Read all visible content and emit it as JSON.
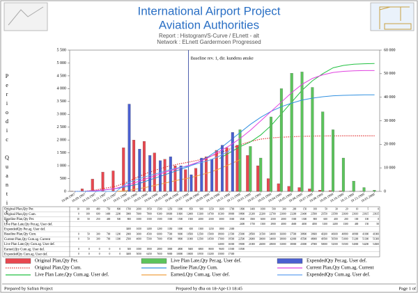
{
  "header": {
    "title": "International Airport Project",
    "subtitle": "Aviation Authorities",
    "report": "Report : Histogram/S-Curve / ELnett - alt",
    "network": "Network : ELnett Gardermoen Progressed"
  },
  "chart_data": {
    "type": "combo",
    "y_label": "Periodic Quantity",
    "annotation": "Baseline rev. 1, dir. kundens ønske",
    "categories": [
      "10.08.1997",
      "10.09.1997",
      "10.10.1997",
      "10.11.1997",
      "10.12.1997",
      "10.01.1998",
      "10.02.1998",
      "10.03.1998",
      "10.04.1998",
      "10.05.1998",
      "10.06.1998",
      "10.07.1998",
      "10.08.1998",
      "10.09.1998",
      "10.10.1998",
      "10.11.1998",
      "10.12.1998",
      "10.01.1999",
      "10.02.1999",
      "10.03.1999",
      "10.04.1999",
      "10.05.1999",
      "10.06.1999",
      "10.07.1999",
      "10.08.1999",
      "10.09.1999",
      "10.10.1999",
      "10.11.1999",
      "10.12.1999",
      "10.01.2000"
    ],
    "ylim": [
      0,
      5500
    ],
    "yticks": [
      0,
      500,
      {
        "value": 1000,
        "label": "1 000"
      },
      {
        "value": 1500,
        "label": "1 500"
      },
      {
        "value": 2000,
        "label": "2 000"
      },
      {
        "value": 2500,
        "label": "2 500"
      },
      {
        "value": 3000,
        "label": "3 000"
      },
      {
        "value": 3500,
        "label": "3 500"
      },
      {
        "value": 4000,
        "label": "4 000"
      },
      {
        "value": 4500,
        "label": "4 500"
      },
      {
        "value": 5000,
        "label": "5 000"
      },
      {
        "value": 5500,
        "label": "5 500"
      }
    ],
    "y2lim": [
      0,
      60000
    ],
    "y2ticks": [
      0,
      {
        "value": 10000,
        "label": "10 000"
      },
      {
        "value": 20000,
        "label": "20 000"
      },
      {
        "value": 30000,
        "label": "30 000"
      },
      {
        "value": 40000,
        "label": "40 000"
      },
      {
        "value": 50000,
        "label": "50 000"
      },
      {
        "value": 60000,
        "label": "60 000"
      }
    ],
    "series": [
      {
        "name": "Original Plan,Qty Per.",
        "type": "bar",
        "color": "#e8474f",
        "values": [
          10,
          100,
          480,
          750,
          800,
          1700,
          2000,
          1950,
          1500,
          1250,
          1000,
          850,
          900,
          1350,
          1600,
          1700,
          1800,
          1400,
          1000,
          500,
          300,
          200,
          150,
          100,
          50,
          30,
          20,
          10,
          5,
          0
        ]
      },
      {
        "name": "Original Plan,Qty Cum.",
        "type": "line",
        "axis": "y2",
        "dash": "dotted",
        "color": "#e03030",
        "values": [
          0,
          100,
          600,
          1400,
          2200,
          3900,
          5900,
          7800,
          9300,
          10600,
          11600,
          12400,
          13300,
          14700,
          16300,
          18000,
          19800,
          21200,
          22200,
          22700,
          23000,
          23200,
          23400,
          23500,
          23550,
          23580,
          23600,
          23610,
          23615,
          23615
        ]
      },
      {
        "name": "Live Plan Late,Qty Cum.ag. User def.",
        "type": "line",
        "axis": "y2",
        "color": "#20c040",
        "values": [
          null,
          null,
          null,
          null,
          null,
          null,
          null,
          null,
          null,
          null,
          null,
          null,
          null,
          null,
          14000,
          16500,
          19000,
          21000,
          24000,
          28000,
          33000,
          38000,
          43000,
          47000,
          50000,
          52500,
          53500,
          54000,
          54200,
          54300
        ]
      },
      {
        "name": "Live Plan Late,Qty Per.ag. User def.",
        "type": "bar",
        "color": "#5cc45c",
        "values": [
          null,
          null,
          null,
          null,
          null,
          null,
          null,
          null,
          null,
          null,
          null,
          null,
          null,
          null,
          null,
          null,
          2400,
          1750,
          1300,
          2900,
          4000,
          4600,
          4650,
          4050,
          3100,
          2400,
          1300,
          400,
          150,
          50
        ]
      },
      {
        "name": "Baseline Plan,Qty Cum.",
        "type": "line",
        "axis": "y2",
        "color": "#3090e0",
        "values": [
          0,
          50,
          300,
          700,
          1200,
          2000,
          3000,
          4500,
          6000,
          7500,
          9000,
          10500,
          12500,
          15000,
          18000,
          21500,
          25000,
          28500,
          31500,
          34000,
          36000,
          37500,
          38800,
          39600,
          40200,
          40600,
          40800,
          40900,
          41000,
          41000
        ]
      },
      {
        "name": "Earned,Qty Cum.ag. User def.",
        "type": "line",
        "axis": "y2",
        "color": "#f0a040",
        "values": [
          0,
          0,
          0,
          0,
          0,
          300,
          1000,
          1800,
          2800,
          3800,
          4800,
          5600,
          6800,
          8000,
          9600,
          11500,
          13500,
          null,
          null,
          null,
          null,
          null,
          null,
          null,
          null,
          null,
          null,
          null,
          null,
          null
        ]
      },
      {
        "name": "ExpendedQty Per.ag. User def.",
        "type": "bar",
        "color": "#4a5fd0",
        "values": [
          null,
          null,
          null,
          null,
          null,
          3400,
          1650,
          1400,
          1200,
          1350,
          1000,
          650,
          1300,
          1250,
          1800,
          2300,
          null,
          null,
          null,
          null,
          null,
          null,
          null,
          null,
          null,
          null,
          null,
          null,
          null,
          null
        ]
      },
      {
        "name": "Current Plan,Qty Cum.ag. Current",
        "type": "line",
        "axis": "y2",
        "color": "#e040e0",
        "values": [
          0,
          50,
          300,
          700,
          1300,
          2500,
          4000,
          5500,
          7000,
          8500,
          9800,
          11000,
          12500,
          14500,
          17000,
          19500,
          22500,
          26000,
          30000,
          34000,
          38000,
          42000,
          45500,
          48000,
          49500,
          50500,
          51000,
          51200,
          51300,
          51300
        ]
      },
      {
        "name": "ExpendedQty Cum.ag. User def.",
        "type": "line",
        "axis": "y2",
        "color": "#60a0f0",
        "values": [
          0,
          0,
          0,
          0,
          0,
          3400,
          5050,
          6450,
          7650,
          9000,
          10000,
          10650,
          11950,
          13200,
          15000,
          17300,
          null,
          null,
          null,
          null,
          null,
          null,
          null,
          null,
          null,
          null,
          null,
          null,
          null,
          null
        ]
      }
    ]
  },
  "table": {
    "rows": [
      {
        "label": "Baseline Plan,Qty Per.",
        "values": [
          10,
          50,
          250,
          400,
          500,
          800,
          1000,
          1500,
          1500,
          1500,
          1500,
          1500,
          2000,
          2500,
          3000,
          3500,
          3500,
          3500,
          3000,
          2500,
          2000,
          1500,
          1300,
          800,
          600,
          400,
          200,
          100,
          100,
          0
        ]
      }
    ]
  },
  "footer": {
    "left": "Prepared by Safran Project",
    "center": "Prepared by dba on 18-Apr-13 18:45",
    "right": "Page 1 of"
  }
}
